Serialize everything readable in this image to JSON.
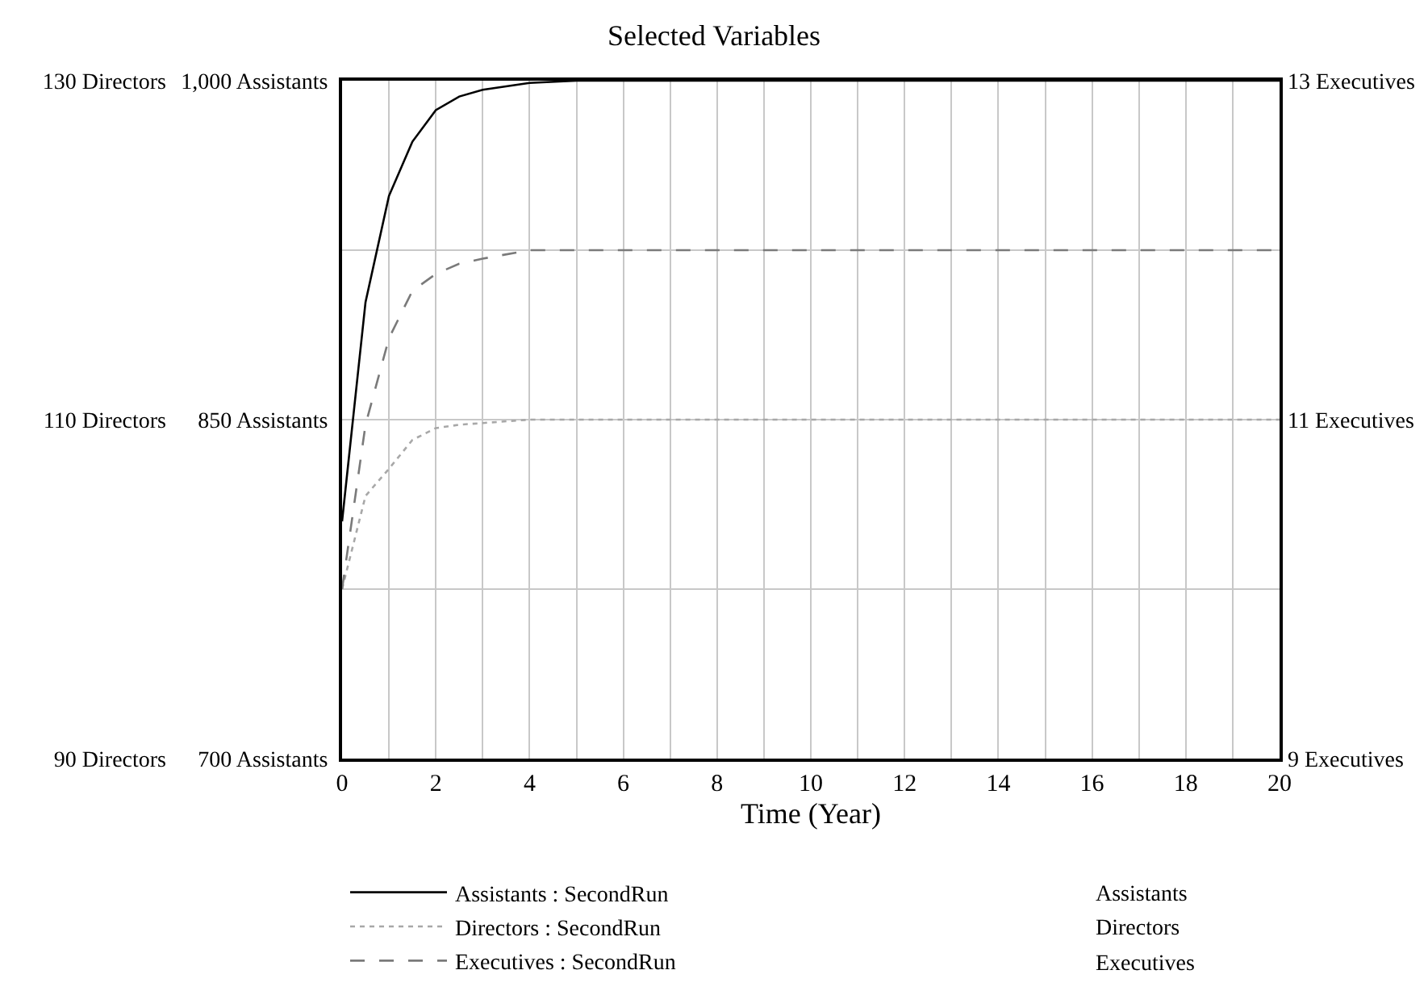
{
  "chart_data": {
    "type": "line",
    "title": "Selected Variables",
    "xlabel": "Time (Year)",
    "x": [
      0,
      0.5,
      1,
      1.5,
      2,
      2.5,
      3,
      4,
      5,
      6,
      8,
      10,
      12,
      14,
      16,
      18,
      20
    ],
    "series": [
      {
        "name": "Assistants : SecondRun",
        "color": "#000000",
        "line_style": "solid",
        "values": [
          805,
          902,
          949,
          973,
          987,
          993,
          996,
          999,
          1000,
          1000,
          1000,
          1000,
          1000,
          1000,
          1000,
          1000,
          1000
        ]
      },
      {
        "name": "Directors : SecondRun",
        "color": "#a8a8a8",
        "line_style": "dotted",
        "axis": "y2",
        "values": [
          100,
          105.5,
          107.1,
          108.8,
          109.5,
          109.7,
          109.8,
          110,
          110,
          110,
          110,
          110,
          110,
          110,
          110,
          110,
          110
        ]
      },
      {
        "name": "Executives : SecondRun",
        "color": "#7a7a7a",
        "line_style": "dashed",
        "axis": "y3",
        "values": [
          10,
          10.97,
          11.48,
          11.76,
          11.86,
          11.92,
          11.95,
          12,
          12,
          12,
          12,
          12,
          12,
          12,
          12,
          12,
          12
        ]
      }
    ],
    "xlim": [
      0,
      20
    ],
    "xticks": [
      0,
      {
        "value": 1,
        "label": null
      },
      2,
      {
        "value": 3,
        "label": null
      },
      4,
      {
        "value": 5,
        "label": null
      },
      6,
      {
        "value": 7,
        "label": null
      },
      8,
      {
        "value": 9,
        "label": null
      },
      10,
      {
        "value": 11,
        "label": null
      },
      12,
      {
        "value": 13,
        "label": null
      },
      14,
      {
        "value": 15,
        "label": null
      },
      16,
      {
        "value": 17,
        "label": null
      },
      18,
      {
        "value": 19,
        "label": null
      },
      20
    ],
    "ylim": [
      700,
      1000
    ],
    "yticks": [
      {
        "value": 700,
        "label": "700 Assistants"
      },
      {
        "value": 775,
        "label": null
      },
      {
        "value": 850,
        "label": "850 Assistants"
      },
      {
        "value": 925,
        "label": null
      },
      {
        "value": 1000,
        "label": "1,000 Assistants"
      }
    ],
    "y2lim": [
      90,
      130
    ],
    "y2ticks": [
      {
        "value": 90,
        "label": "90 Directors"
      },
      {
        "value": 110,
        "label": "110 Directors"
      },
      {
        "value": 130,
        "label": "130 Directors"
      }
    ],
    "y3lim": [
      9,
      13
    ],
    "y3ticks": [
      {
        "value": 9,
        "label": "9 Executives"
      },
      {
        "value": 11,
        "label": "11 Executives"
      },
      {
        "value": 13,
        "label": "13 Executives"
      }
    ],
    "annotations": [
      "Assistants",
      "Directors",
      "Executives"
    ],
    "grid": true,
    "legend": "bottom"
  }
}
